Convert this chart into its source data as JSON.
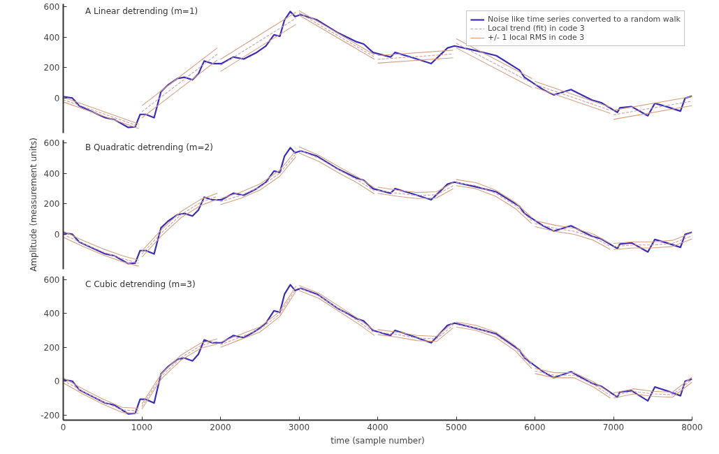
{
  "chart_data": [
    {
      "type": "line",
      "title": "A  Linear detrending (m=1)",
      "xlim": [
        0,
        8000
      ],
      "ylim": [
        -230,
        620
      ],
      "xticks": [
        0,
        1000,
        2000,
        3000,
        4000,
        5000,
        6000,
        7000,
        8000
      ],
      "yticks": [
        0,
        200,
        400,
        600
      ],
      "tick_labels": "y",
      "legend": "top right",
      "x": [
        0,
        116,
        204,
        533,
        649,
        827,
        916,
        978,
        1049,
        1156,
        1244,
        1333,
        1452,
        1541,
        1644,
        1719,
        1793,
        1896,
        2015,
        2163,
        2296,
        2459,
        2578,
        2681,
        2756,
        2815,
        2889,
        2948,
        3022,
        3230,
        3496,
        3733,
        3822,
        3941,
        4163,
        4222,
        4444,
        4681,
        4889,
        4978,
        5244,
        5511,
        5804,
        5867,
        6104,
        6240,
        6459,
        6726,
        6844,
        7049,
        7081,
        7230,
        7437,
        7526,
        7674,
        7852,
        7911,
        8000
      ],
      "series": [
        {
          "name": "Noise like time series converted to a random walk",
          "color": "#3b2db5",
          "line_style": "solid",
          "values": [
            10,
            0,
            -51,
            -129,
            -141,
            -193,
            -189,
            -107,
            -107,
            -129,
            43,
            86,
            129,
            137,
            120,
            159,
            244,
            227,
            227,
            270,
            257,
            300,
            343,
            416,
            407,
            514,
            570,
            536,
            549,
            514,
            429,
            370,
            356,
            300,
            270,
            300,
            266,
            227,
            330,
            343,
            313,
            279,
            184,
            137,
            56,
            21,
            56,
            -13,
            -30,
            -94,
            -64,
            -56,
            -116,
            -34,
            -56,
            -86,
            0,
            13
          ]
        },
        {
          "name": "Local trend (fit) in code 3",
          "color": "#c9a0a8",
          "line_style": "dashed",
          "x": [
            0,
            960
          ],
          "values": [
            -10,
            -185
          ]
        },
        {
          "color": "#c9a0a8",
          "line_style": "dashed",
          "x": [
            1000,
            1960
          ],
          "values": [
            -90,
            290
          ]
        },
        {
          "color": "#c9a0a8",
          "line_style": "dashed",
          "x": [
            2000,
            2960
          ],
          "values": [
            215,
            525
          ]
        },
        {
          "color": "#c9a0a8",
          "line_style": "dashed",
          "x": [
            3000,
            3960
          ],
          "values": [
            560,
            270
          ]
        },
        {
          "color": "#c9a0a8",
          "line_style": "dashed",
          "x": [
            4000,
            4960
          ],
          "values": [
            255,
            290
          ]
        },
        {
          "color": "#c9a0a8",
          "line_style": "dashed",
          "x": [
            5000,
            5960
          ],
          "values": [
            360,
            100
          ]
        },
        {
          "color": "#c9a0a8",
          "line_style": "dashed",
          "x": [
            6000,
            6960
          ],
          "values": [
            90,
            -80
          ]
        },
        {
          "color": "#c9a0a8",
          "line_style": "dashed",
          "x": [
            7000,
            8000
          ],
          "values": [
            -110,
            -20
          ]
        },
        {
          "name": "+/- 1 local RMS in code 3",
          "color": "#d8a080",
          "line_style": "solid",
          "x": [
            0,
            960
          ],
          "values": [
            5,
            -170
          ]
        },
        {
          "color": "#d8a080",
          "line_style": "solid",
          "x": [
            1000,
            1960
          ],
          "values": [
            -50,
            330
          ]
        },
        {
          "color": "#d8a080",
          "line_style": "solid",
          "x": [
            2000,
            2960
          ],
          "values": [
            255,
            565
          ]
        },
        {
          "color": "#d8a080",
          "line_style": "solid",
          "x": [
            3000,
            3960
          ],
          "values": [
            575,
            285
          ]
        },
        {
          "color": "#d8a080",
          "line_style": "solid",
          "x": [
            4000,
            4960
          ],
          "values": [
            280,
            315
          ]
        },
        {
          "color": "#d8a080",
          "line_style": "solid",
          "x": [
            5000,
            5960
          ],
          "values": [
            390,
            130
          ]
        },
        {
          "color": "#d8a080",
          "line_style": "solid",
          "x": [
            6000,
            6960
          ],
          "values": [
            110,
            -60
          ]
        },
        {
          "color": "#d8a080",
          "line_style": "solid",
          "x": [
            7000,
            8000
          ],
          "values": [
            -80,
            10
          ]
        },
        {
          "color": "#d8a080",
          "line_style": "solid",
          "x": [
            0,
            960
          ],
          "values": [
            -25,
            -200
          ]
        },
        {
          "color": "#d8a080",
          "line_style": "solid",
          "x": [
            1000,
            1960
          ],
          "values": [
            -130,
            250
          ]
        },
        {
          "color": "#d8a080",
          "line_style": "solid",
          "x": [
            2000,
            2960
          ],
          "values": [
            175,
            485
          ]
        },
        {
          "color": "#d8a080",
          "line_style": "solid",
          "x": [
            3000,
            3960
          ],
          "values": [
            545,
            255
          ]
        },
        {
          "color": "#d8a080",
          "line_style": "solid",
          "x": [
            4000,
            4960
          ],
          "values": [
            230,
            265
          ]
        },
        {
          "color": "#d8a080",
          "line_style": "solid",
          "x": [
            5000,
            5960
          ],
          "values": [
            330,
            70
          ]
        },
        {
          "color": "#d8a080",
          "line_style": "solid",
          "x": [
            6000,
            6960
          ],
          "values": [
            70,
            -100
          ]
        },
        {
          "color": "#d8a080",
          "line_style": "solid",
          "x": [
            7000,
            8000
          ],
          "values": [
            -140,
            -50
          ]
        }
      ]
    },
    {
      "type": "line",
      "title": "B  Quadratic detrending (m=2)",
      "ylabel": "Amplitude (measurement units)",
      "xlim": [
        0,
        8000
      ],
      "ylim": [
        -230,
        620
      ],
      "xticks": [
        0,
        1000,
        2000,
        3000,
        4000,
        5000,
        6000,
        7000,
        8000
      ],
      "yticks": [
        0,
        200,
        400,
        600
      ],
      "tick_labels": "y",
      "x": [
        0,
        116,
        204,
        533,
        649,
        827,
        916,
        978,
        1049,
        1156,
        1244,
        1333,
        1452,
        1541,
        1644,
        1719,
        1793,
        1896,
        2015,
        2163,
        2296,
        2459,
        2578,
        2681,
        2756,
        2815,
        2889,
        2948,
        3022,
        3230,
        3496,
        3733,
        3822,
        3941,
        4163,
        4222,
        4444,
        4681,
        4889,
        4978,
        5244,
        5511,
        5804,
        5867,
        6104,
        6240,
        6459,
        6726,
        6844,
        7049,
        7081,
        7230,
        7437,
        7526,
        7674,
        7852,
        7911,
        8000
      ],
      "series": [
        {
          "color": "#3b2db5",
          "line_style": "solid",
          "values": [
            10,
            0,
            -51,
            -129,
            -141,
            -193,
            -189,
            -107,
            -107,
            -129,
            43,
            86,
            129,
            137,
            120,
            159,
            244,
            227,
            227,
            270,
            257,
            300,
            343,
            416,
            407,
            514,
            570,
            536,
            549,
            514,
            429,
            370,
            356,
            300,
            270,
            300,
            266,
            227,
            330,
            343,
            313,
            279,
            184,
            137,
            56,
            21,
            56,
            -13,
            -30,
            -94,
            -64,
            -56,
            -116,
            -34,
            -56,
            -86,
            0,
            13
          ]
        },
        {
          "color": "#c9a0a8",
          "line_style": "dashed",
          "x": [
            0,
            250,
            500,
            750,
            960
          ],
          "values": [
            0,
            -60,
            -115,
            -160,
            -190
          ]
        },
        {
          "color": "#c9a0a8",
          "line_style": "dashed",
          "x": [
            1000,
            1250,
            1500,
            1750,
            1960
          ],
          "values": [
            -130,
            10,
            130,
            210,
            250
          ]
        },
        {
          "color": "#c9a0a8",
          "line_style": "dashed",
          "x": [
            2000,
            2250,
            2500,
            2750,
            2960
          ],
          "values": [
            215,
            255,
            310,
            400,
            530
          ]
        },
        {
          "color": "#c9a0a8",
          "line_style": "dashed",
          "x": [
            3000,
            3250,
            3500,
            3750,
            3960
          ],
          "values": [
            555,
            500,
            425,
            355,
            285
          ]
        },
        {
          "color": "#c9a0a8",
          "line_style": "dashed",
          "x": [
            4000,
            4250,
            4500,
            4750,
            4960
          ],
          "values": [
            290,
            270,
            255,
            260,
            320
          ]
        },
        {
          "color": "#c9a0a8",
          "line_style": "dashed",
          "x": [
            5000,
            5250,
            5500,
            5750,
            5960
          ],
          "values": [
            340,
            320,
            270,
            190,
            90
          ]
        },
        {
          "color": "#c9a0a8",
          "line_style": "dashed",
          "x": [
            6000,
            6250,
            6500,
            6750,
            6960
          ],
          "values": [
            70,
            40,
            20,
            -20,
            -80
          ]
        },
        {
          "color": "#c9a0a8",
          "line_style": "dashed",
          "x": [
            7000,
            7250,
            7500,
            7750,
            8000
          ],
          "values": [
            -80,
            -70,
            -70,
            -60,
            -10
          ]
        },
        {
          "color": "#d8a080",
          "line_style": "solid",
          "x": [
            0,
            250,
            500,
            750,
            960
          ],
          "values": [
            20,
            -40,
            -95,
            -140,
            -170
          ]
        },
        {
          "color": "#d8a080",
          "line_style": "solid",
          "x": [
            1000,
            1250,
            1500,
            1750,
            1960
          ],
          "values": [
            -110,
            30,
            150,
            230,
            270
          ]
        },
        {
          "color": "#d8a080",
          "line_style": "solid",
          "x": [
            2000,
            2250,
            2500,
            2750,
            2960
          ],
          "values": [
            235,
            275,
            330,
            420,
            550
          ]
        },
        {
          "color": "#d8a080",
          "line_style": "solid",
          "x": [
            3000,
            3250,
            3500,
            3750,
            3960
          ],
          "values": [
            575,
            520,
            445,
            375,
            305
          ]
        },
        {
          "color": "#d8a080",
          "line_style": "solid",
          "x": [
            4000,
            4250,
            4500,
            4750,
            4960
          ],
          "values": [
            310,
            290,
            275,
            280,
            340
          ]
        },
        {
          "color": "#d8a080",
          "line_style": "solid",
          "x": [
            5000,
            5250,
            5500,
            5750,
            5960
          ],
          "values": [
            360,
            340,
            290,
            210,
            110
          ]
        },
        {
          "color": "#d8a080",
          "line_style": "solid",
          "x": [
            6000,
            6250,
            6500,
            6750,
            6960
          ],
          "values": [
            90,
            60,
            40,
            0,
            -60
          ]
        },
        {
          "color": "#d8a080",
          "line_style": "solid",
          "x": [
            7000,
            7250,
            7500,
            7750,
            8000
          ],
          "values": [
            -60,
            -50,
            -50,
            -40,
            10
          ]
        },
        {
          "color": "#d8a080",
          "line_style": "solid",
          "x": [
            0,
            250,
            500,
            750,
            960
          ],
          "values": [
            -20,
            -80,
            -135,
            -180,
            -210
          ]
        },
        {
          "color": "#d8a080",
          "line_style": "solid",
          "x": [
            1000,
            1250,
            1500,
            1750,
            1960
          ],
          "values": [
            -150,
            -10,
            110,
            190,
            230
          ]
        },
        {
          "color": "#d8a080",
          "line_style": "solid",
          "x": [
            2000,
            2250,
            2500,
            2750,
            2960
          ],
          "values": [
            195,
            235,
            290,
            380,
            510
          ]
        },
        {
          "color": "#d8a080",
          "line_style": "solid",
          "x": [
            3000,
            3250,
            3500,
            3750,
            3960
          ],
          "values": [
            535,
            480,
            405,
            335,
            265
          ]
        },
        {
          "color": "#d8a080",
          "line_style": "solid",
          "x": [
            4000,
            4250,
            4500,
            4750,
            4960
          ],
          "values": [
            270,
            250,
            235,
            240,
            300
          ]
        },
        {
          "color": "#d8a080",
          "line_style": "solid",
          "x": [
            5000,
            5250,
            5500,
            5750,
            5960
          ],
          "values": [
            320,
            300,
            250,
            170,
            70
          ]
        },
        {
          "color": "#d8a080",
          "line_style": "solid",
          "x": [
            6000,
            6250,
            6500,
            6750,
            6960
          ],
          "values": [
            50,
            20,
            0,
            -40,
            -100
          ]
        },
        {
          "color": "#d8a080",
          "line_style": "solid",
          "x": [
            7000,
            7250,
            7500,
            7750,
            8000
          ],
          "values": [
            -100,
            -90,
            -90,
            -80,
            -30
          ]
        }
      ]
    },
    {
      "type": "line",
      "title": "C  Cubic detrending (m=3)",
      "xlabel": "time (sample number)",
      "xlim": [
        0,
        8000
      ],
      "ylim": [
        -230,
        620
      ],
      "xticks": [
        0,
        1000,
        2000,
        3000,
        4000,
        5000,
        6000,
        7000,
        8000
      ],
      "yticks": [
        -200,
        0,
        200,
        400,
        600
      ],
      "x": [
        0,
        116,
        204,
        533,
        649,
        827,
        916,
        978,
        1049,
        1156,
        1244,
        1333,
        1452,
        1541,
        1644,
        1719,
        1793,
        1896,
        2015,
        2163,
        2296,
        2459,
        2578,
        2681,
        2756,
        2815,
        2889,
        2948,
        3022,
        3230,
        3496,
        3733,
        3822,
        3941,
        4163,
        4222,
        4444,
        4681,
        4889,
        4978,
        5244,
        5511,
        5804,
        5867,
        6104,
        6240,
        6459,
        6726,
        6844,
        7049,
        7081,
        7230,
        7437,
        7526,
        7674,
        7852,
        7911,
        8000
      ],
      "series": [
        {
          "color": "#3b2db5",
          "line_style": "solid",
          "values": [
            10,
            0,
            -51,
            -129,
            -141,
            -193,
            -189,
            -107,
            -107,
            -129,
            43,
            86,
            129,
            137,
            120,
            159,
            244,
            227,
            227,
            270,
            257,
            300,
            343,
            416,
            407,
            514,
            570,
            536,
            549,
            514,
            429,
            370,
            356,
            300,
            270,
            300,
            266,
            227,
            330,
            343,
            313,
            279,
            184,
            137,
            56,
            21,
            56,
            -13,
            -30,
            -94,
            -64,
            -56,
            -116,
            -34,
            -56,
            -86,
            0,
            13
          ]
        },
        {
          "color": "#c9a0a8",
          "line_style": "dashed",
          "x": [
            0,
            250,
            500,
            750,
            960
          ],
          "values": [
            5,
            -60,
            -120,
            -170,
            -175
          ]
        },
        {
          "color": "#c9a0a8",
          "line_style": "dashed",
          "x": [
            1000,
            1250,
            1500,
            1750,
            1960
          ],
          "values": [
            -150,
            30,
            140,
            210,
            235
          ]
        },
        {
          "color": "#c9a0a8",
          "line_style": "dashed",
          "x": [
            2000,
            2250,
            2500,
            2750,
            2960
          ],
          "values": [
            215,
            260,
            305,
            395,
            545
          ]
        },
        {
          "color": "#c9a0a8",
          "line_style": "dashed",
          "x": [
            3000,
            3250,
            3500,
            3750,
            3960
          ],
          "values": [
            550,
            505,
            430,
            355,
            285
          ]
        },
        {
          "color": "#c9a0a8",
          "line_style": "dashed",
          "x": [
            4000,
            4250,
            4500,
            4750,
            4960
          ],
          "values": [
            290,
            275,
            255,
            250,
            330
          ]
        },
        {
          "color": "#c9a0a8",
          "line_style": "dashed",
          "x": [
            5000,
            5250,
            5500,
            5750,
            5960
          ],
          "values": [
            335,
            315,
            275,
            195,
            90
          ]
        },
        {
          "color": "#c9a0a8",
          "line_style": "dashed",
          "x": [
            6000,
            6250,
            6500,
            6750,
            6960
          ],
          "values": [
            60,
            35,
            35,
            -20,
            -85
          ]
        },
        {
          "color": "#c9a0a8",
          "line_style": "dashed",
          "x": [
            7000,
            7250,
            7500,
            7750,
            8000
          ],
          "values": [
            -85,
            -60,
            -75,
            -80,
            10
          ]
        },
        {
          "color": "#d8a080",
          "line_style": "solid",
          "x": [
            0,
            250,
            500,
            750,
            960
          ],
          "values": [
            20,
            -45,
            -105,
            -155,
            -160
          ]
        },
        {
          "color": "#d8a080",
          "line_style": "solid",
          "x": [
            1000,
            1250,
            1500,
            1750,
            1960
          ],
          "values": [
            -135,
            45,
            155,
            225,
            250
          ]
        },
        {
          "color": "#d8a080",
          "line_style": "solid",
          "x": [
            2000,
            2250,
            2500,
            2750,
            2960
          ],
          "values": [
            230,
            275,
            320,
            410,
            560
          ]
        },
        {
          "color": "#d8a080",
          "line_style": "solid",
          "x": [
            3000,
            3250,
            3500,
            3750,
            3960
          ],
          "values": [
            565,
            520,
            445,
            370,
            300
          ]
        },
        {
          "color": "#d8a080",
          "line_style": "solid",
          "x": [
            4000,
            4250,
            4500,
            4750,
            4960
          ],
          "values": [
            305,
            290,
            270,
            265,
            345
          ]
        },
        {
          "color": "#d8a080",
          "line_style": "solid",
          "x": [
            5000,
            5250,
            5500,
            5750,
            5960
          ],
          "values": [
            350,
            330,
            290,
            210,
            105
          ]
        },
        {
          "color": "#d8a080",
          "line_style": "solid",
          "x": [
            6000,
            6250,
            6500,
            6750,
            6960
          ],
          "values": [
            75,
            50,
            50,
            -5,
            -70
          ]
        },
        {
          "color": "#d8a080",
          "line_style": "solid",
          "x": [
            7000,
            7250,
            7500,
            7750,
            8000
          ],
          "values": [
            -70,
            -45,
            -60,
            -65,
            25
          ]
        },
        {
          "color": "#d8a080",
          "line_style": "solid",
          "x": [
            0,
            250,
            500,
            750,
            960
          ],
          "values": [
            -10,
            -75,
            -135,
            -185,
            -190
          ]
        },
        {
          "color": "#d8a080",
          "line_style": "solid",
          "x": [
            1000,
            1250,
            1500,
            1750,
            1960
          ],
          "values": [
            -165,
            15,
            125,
            195,
            220
          ]
        },
        {
          "color": "#d8a080",
          "line_style": "solid",
          "x": [
            2000,
            2250,
            2500,
            2750,
            2960
          ],
          "values": [
            200,
            245,
            290,
            380,
            530
          ]
        },
        {
          "color": "#d8a080",
          "line_style": "solid",
          "x": [
            3000,
            3250,
            3500,
            3750,
            3960
          ],
          "values": [
            535,
            490,
            415,
            340,
            270
          ]
        },
        {
          "color": "#d8a080",
          "line_style": "solid",
          "x": [
            4000,
            4250,
            4500,
            4750,
            4960
          ],
          "values": [
            275,
            260,
            240,
            235,
            315
          ]
        },
        {
          "color": "#d8a080",
          "line_style": "solid",
          "x": [
            5000,
            5250,
            5500,
            5750,
            5960
          ],
          "values": [
            320,
            300,
            260,
            180,
            75
          ]
        },
        {
          "color": "#d8a080",
          "line_style": "solid",
          "x": [
            6000,
            6250,
            6500,
            6750,
            6960
          ],
          "values": [
            45,
            20,
            20,
            -35,
            -100
          ]
        },
        {
          "color": "#d8a080",
          "line_style": "solid",
          "x": [
            7000,
            7250,
            7500,
            7750,
            8000
          ],
          "values": [
            -100,
            -75,
            -90,
            -95,
            -5
          ]
        }
      ]
    }
  ]
}
